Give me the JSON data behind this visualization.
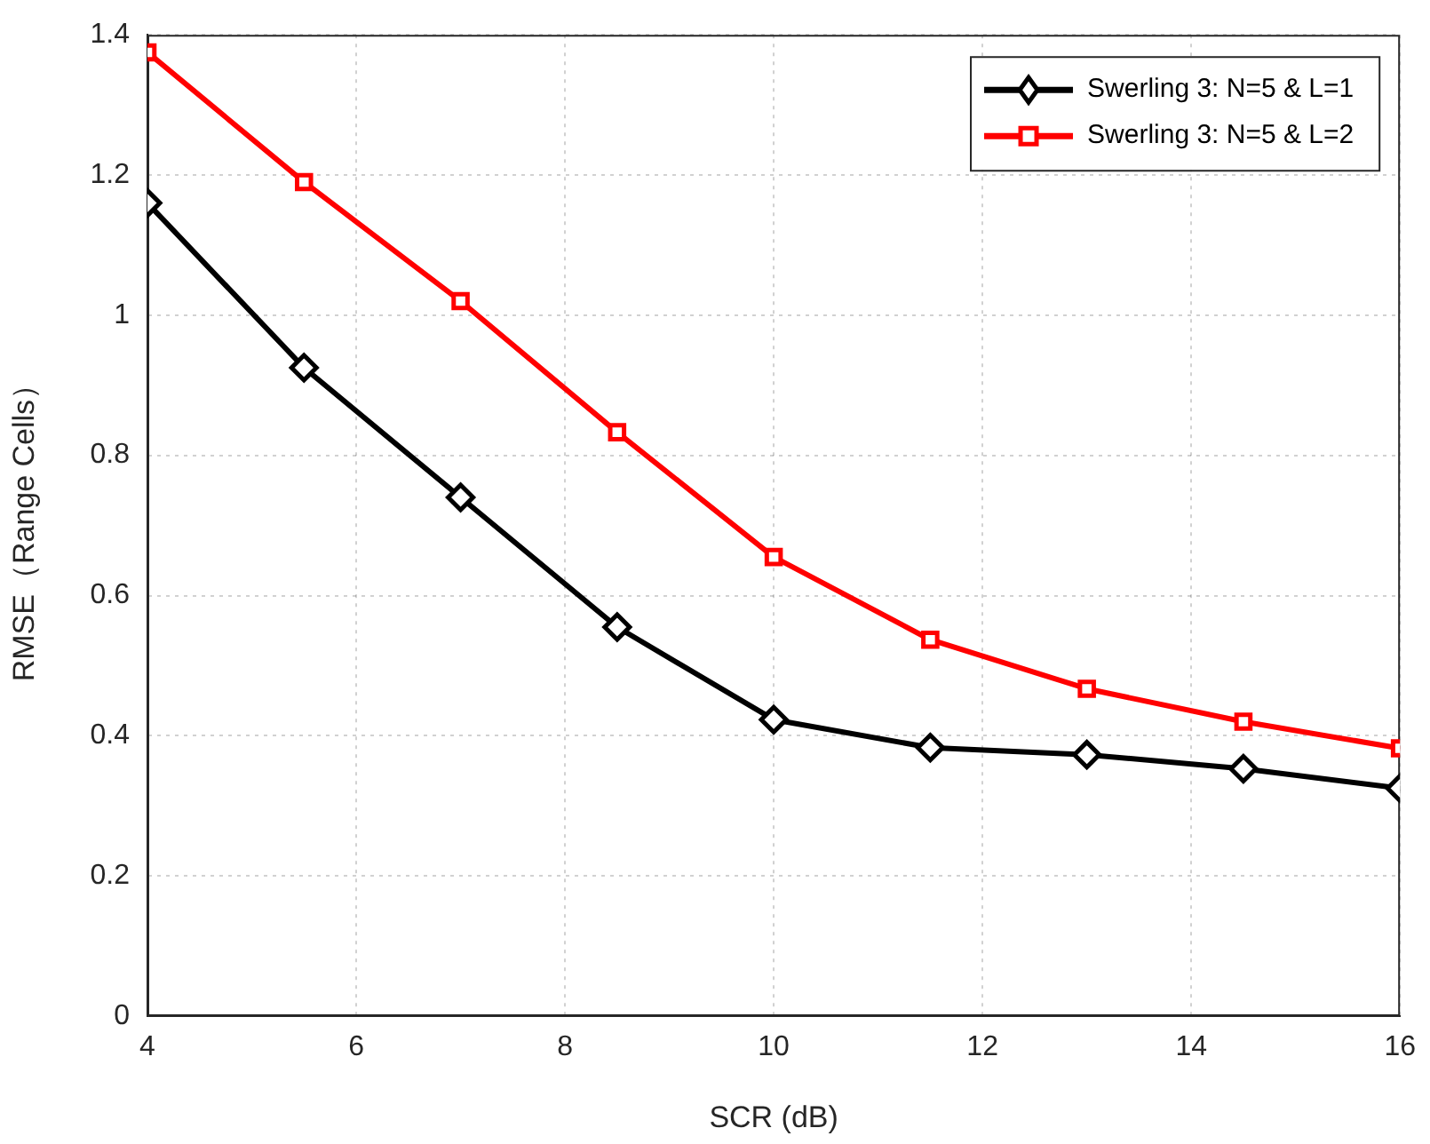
{
  "chart_data": {
    "type": "line",
    "xlabel": "SCR (dB)",
    "ylabel": "RMSE（Range Cells）",
    "x": [
      4,
      5.5,
      7,
      8.5,
      10,
      11.5,
      13,
      14.5,
      16
    ],
    "series": [
      {
        "name": "Swerling 3: N=5 & L=1",
        "color": "#000000",
        "marker": "diamond",
        "values": [
          1.16,
          0.925,
          0.74,
          0.555,
          0.423,
          0.383,
          0.373,
          0.353,
          0.325
        ]
      },
      {
        "name": "Swerling 3: N=5 & L=2",
        "color": "#ff0000",
        "marker": "square",
        "values": [
          1.375,
          1.19,
          1.02,
          0.833,
          0.655,
          0.537,
          0.467,
          0.42,
          0.382
        ]
      }
    ],
    "xlim": [
      4,
      16
    ],
    "xticks": [
      4,
      6,
      8,
      10,
      12,
      14,
      16
    ],
    "ylim": [
      0,
      1.4
    ],
    "yticks": [
      0,
      0.2,
      0.4,
      0.6,
      0.8,
      1,
      1.2,
      1.4
    ],
    "grid": true,
    "legend": "top right",
    "line_style": "solid"
  }
}
